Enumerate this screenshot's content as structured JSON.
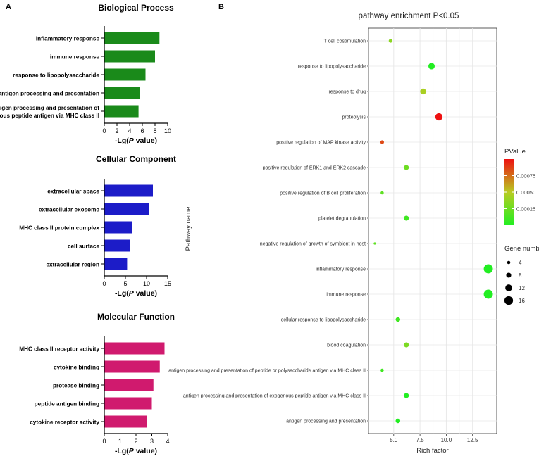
{
  "panel_labels": {
    "a": "A",
    "b": "B"
  },
  "chart_data": [
    {
      "type": "bar",
      "orientation": "horizontal",
      "title": "Biological Process",
      "color": "#1a8a1a",
      "categories": [
        "inflammatory response",
        "immune response",
        "response to lipopolysaccharide",
        "antigen processing and presentation",
        "antigen processing and presentation of exogenous peptide antigen via MHC class II"
      ],
      "category_lines": [
        [
          "inflammatory response"
        ],
        [
          "immune response"
        ],
        [
          "response to lipopolysaccharide"
        ],
        [
          "antigen processing and presentation"
        ],
        [
          "antigen processing and presentation of",
          "exogenous peptide antigen via MHC class II"
        ]
      ],
      "values": [
        8.7,
        8.0,
        6.5,
        5.6,
        5.4
      ],
      "xlim": [
        0,
        10
      ],
      "xticks": [
        "0",
        "2",
        "4",
        "6",
        "8",
        "10"
      ],
      "xlabel_prefix": "-Lg(",
      "xlabel_italic": "P",
      "xlabel_suffix": " value)"
    },
    {
      "type": "bar",
      "orientation": "horizontal",
      "title": "Cellular Component",
      "color": "#1c1cc8",
      "categories": [
        "extracellular space",
        "extracellular exosome",
        "MHC class II protein complex",
        "cell surface",
        "extracellular region"
      ],
      "category_lines": [
        [
          "extracellular space"
        ],
        [
          "extracellular exosome"
        ],
        [
          "MHC class II protein complex"
        ],
        [
          "cell surface"
        ],
        [
          "extracellular region"
        ]
      ],
      "values": [
        11.5,
        10.5,
        6.5,
        6.0,
        5.4
      ],
      "xlim": [
        0,
        15
      ],
      "xticks": [
        "0",
        "5",
        "10",
        "15"
      ],
      "xlabel_prefix": "-Lg(",
      "xlabel_italic": "P",
      "xlabel_suffix": " value)"
    },
    {
      "type": "bar",
      "orientation": "horizontal",
      "title": "Molecular Function",
      "color": "#d01a6e",
      "categories": [
        "MHC class II receptor activity",
        "cytokine binding",
        "protease binding",
        "peptide antigen binding",
        "cytokine receptor activity"
      ],
      "category_lines": [
        [
          "MHC class II receptor activity"
        ],
        [
          "cytokine binding"
        ],
        [
          "protease binding"
        ],
        [
          "peptide antigen binding"
        ],
        [
          "cytokine receptor activity"
        ]
      ],
      "values": [
        3.8,
        3.5,
        3.1,
        3.0,
        2.7
      ],
      "xlim": [
        0,
        4
      ],
      "xticks": [
        "0",
        "1",
        "2",
        "3",
        "4"
      ],
      "xlabel_prefix": "-Lg(",
      "xlabel_italic": "P",
      "xlabel_suffix": " value)"
    },
    {
      "type": "scatter",
      "title": "pathway enrichment P<0.05",
      "xlabel": "Rich factor",
      "ylabel": "Pathway name",
      "xlim": [
        2.6,
        14.8
      ],
      "xticks": [
        5.0,
        7.5,
        10.0,
        12.5
      ],
      "xtick_labels": [
        "5.0",
        "7.5",
        "10.0",
        "12.5"
      ],
      "points": [
        {
          "name": "T cell costimulation",
          "x": 4.7,
          "genes": 5,
          "pvalue": 0.00035
        },
        {
          "name": "response to lipopolysaccharide",
          "x": 8.6,
          "genes": 11,
          "pvalue": 0.0
        },
        {
          "name": "response to drug",
          "x": 7.8,
          "genes": 10,
          "pvalue": 0.00045
        },
        {
          "name": "proteolysis",
          "x": 9.3,
          "genes": 13,
          "pvalue": 0.001
        },
        {
          "name": "positive regulation of MAP kinase activity",
          "x": 3.9,
          "genes": 5,
          "pvalue": 0.00085
        },
        {
          "name": "positive regulation of ERK1 and ERK2 cascade",
          "x": 6.2,
          "genes": 8,
          "pvalue": 0.00025
        },
        {
          "name": "positive regulation of B cell proliferation",
          "x": 3.9,
          "genes": 4,
          "pvalue": 0.0002
        },
        {
          "name": "platelet degranulation",
          "x": 6.2,
          "genes": 8,
          "pvalue": 0.0001
        },
        {
          "name": "negative regulation of growth of symbiont in host",
          "x": 3.2,
          "genes": 2,
          "pvalue": 0.0002
        },
        {
          "name": "inflammatory response",
          "x": 14.0,
          "genes": 17,
          "pvalue": 0.0
        },
        {
          "name": "immune response",
          "x": 14.0,
          "genes": 17,
          "pvalue": 0.0
        },
        {
          "name": "cellular response to lipopolysaccharide",
          "x": 5.4,
          "genes": 7,
          "pvalue": 0.0001
        },
        {
          "name": "blood coagulation",
          "x": 6.2,
          "genes": 8,
          "pvalue": 0.0003
        },
        {
          "name": "antigen processing and presentation of peptide or polysaccharide antigen via MHC class II",
          "x": 3.9,
          "genes": 4,
          "pvalue": 0.0001
        },
        {
          "name": "antigen processing and presentation of exogenous peptide antigen via MHC class II",
          "x": 6.2,
          "genes": 8,
          "pvalue": 0.0
        },
        {
          "name": "antigen processing and presentation",
          "x": 5.4,
          "genes": 7,
          "pvalue": 0.0
        }
      ],
      "color_legend": {
        "title": "PValue",
        "range": [
          0,
          0.001
        ],
        "low_color": "#22ee22",
        "mid_color": "#b8cc22",
        "high_color": "#ee1111",
        "ticks": [
          0.00025,
          0.0005,
          0.00075
        ],
        "tick_labels": [
          "0.00025",
          "0.00050",
          "0.00075"
        ]
      },
      "size_legend": {
        "title": "Gene number",
        "values": [
          4,
          8,
          12,
          16
        ],
        "labels": [
          "4",
          "8",
          "12",
          "16"
        ]
      }
    }
  ]
}
